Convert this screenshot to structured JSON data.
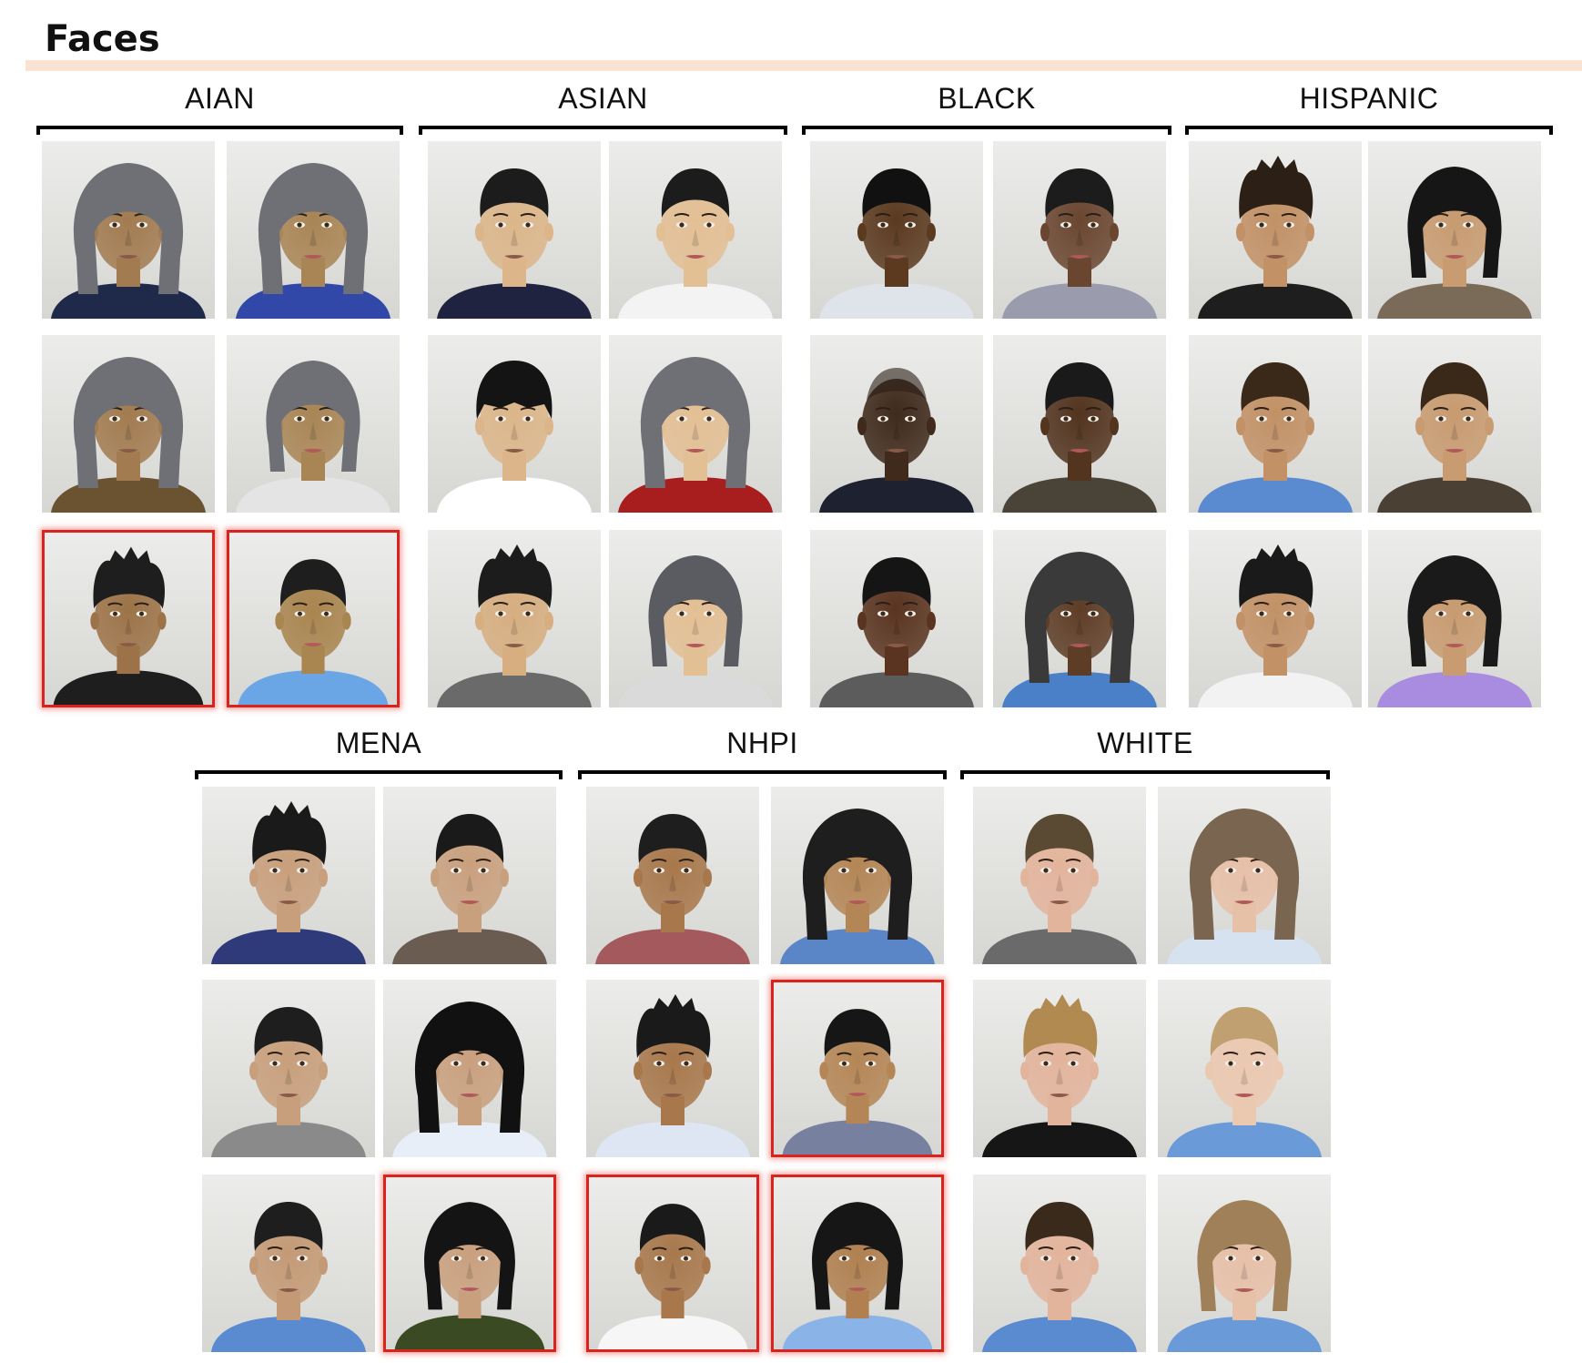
{
  "title": "Faces",
  "groups": [
    {
      "label": "AIAN"
    },
    {
      "label": "ASIAN"
    },
    {
      "label": "BLACK"
    },
    {
      "label": "HISPANIC"
    },
    {
      "label": "MENA"
    },
    {
      "label": "NHPI"
    },
    {
      "label": "WHITE"
    }
  ],
  "colors": {
    "highlight_border": "#d8231f",
    "title_rule": "#fbe3d4"
  },
  "faces": {
    "AIAN": [
      {
        "gender": "male",
        "skin": "#a27b50",
        "hair": "#6e7075",
        "hair_style": "long",
        "shirt": "#1f2a4a",
        "highlighted": false
      },
      {
        "gender": "female",
        "skin": "#a98555",
        "hair": "#6e7075",
        "hair_style": "long",
        "shirt": "#3248a8",
        "highlighted": false
      },
      {
        "gender": "male",
        "skin": "#a27b50",
        "hair": "#6e7075",
        "hair_style": "long",
        "shirt": "#6b5230",
        "highlighted": false
      },
      {
        "gender": "female",
        "skin": "#a98555",
        "hair": "#6e7075",
        "hair_style": "bob",
        "shirt": "#e4e4e4",
        "highlighted": false
      },
      {
        "gender": "male",
        "skin": "#9c7348",
        "hair": "#1e1e1e",
        "hair_style": "spiky",
        "shirt": "#1e1e1e",
        "highlighted": true
      },
      {
        "gender": "female",
        "skin": "#a9854f",
        "hair": "#1e1e1e",
        "hair_style": "slick",
        "shirt": "#6aa6e6",
        "highlighted": true
      }
    ],
    "ASIAN": [
      {
        "gender": "male",
        "skin": "#dcb68a",
        "hair": "#1c1c1c",
        "hair_style": "short",
        "shirt": "#1f2340",
        "highlighted": false
      },
      {
        "gender": "female",
        "skin": "#e3bf94",
        "hair": "#1c1c1c",
        "hair_style": "slick",
        "shirt": "#f3f3f3",
        "highlighted": false
      },
      {
        "gender": "male",
        "skin": "#dcb68a",
        "hair": "#141414",
        "hair_style": "bangs",
        "shirt": "#ffffff",
        "highlighted": false
      },
      {
        "gender": "female",
        "skin": "#e3bf94",
        "hair": "#6e7075",
        "hair_style": "long",
        "shirt": "#a81e1e",
        "highlighted": false
      },
      {
        "gender": "male",
        "skin": "#d6ae80",
        "hair": "#1c1c1c",
        "hair_style": "spiky",
        "shirt": "#6a6a6a",
        "highlighted": false
      },
      {
        "gender": "female",
        "skin": "#e3bf94",
        "hair": "#5a5c62",
        "hair_style": "bob",
        "shirt": "#dadada",
        "highlighted": false
      }
    ],
    "BLACK": [
      {
        "gender": "male",
        "skin": "#5b3a1f",
        "hair": "#111111",
        "hair_style": "short",
        "shirt": "#dfe3ea",
        "highlighted": false
      },
      {
        "gender": "female",
        "skin": "#6a4630",
        "hair": "#1c1c1c",
        "hair_style": "short",
        "shirt": "#9a9cae",
        "highlighted": false
      },
      {
        "gender": "male",
        "skin": "#3f2a1c",
        "hair": "#2a1d14",
        "hair_style": "bald",
        "shirt": "#1e2230",
        "highlighted": false
      },
      {
        "gender": "female",
        "skin": "#52341f",
        "hair": "#1a1a1a",
        "hair_style": "short",
        "shirt": "#4a4438",
        "highlighted": false
      },
      {
        "gender": "male",
        "skin": "#5a3420",
        "hair": "#151515",
        "hair_style": "short",
        "shirt": "#5c5c5c",
        "highlighted": false
      },
      {
        "gender": "female",
        "skin": "#5e3d26",
        "hair": "#3a3a3a",
        "hair_style": "long",
        "shirt": "#4a80c8",
        "highlighted": false
      }
    ],
    "HISPANIC": [
      {
        "gender": "male",
        "skin": "#c29166",
        "hair": "#2b1f16",
        "hair_style": "spiky",
        "shirt": "#1e1e1e",
        "highlighted": false
      },
      {
        "gender": "female",
        "skin": "#c89b70",
        "hair": "#161616",
        "hair_style": "bob",
        "shirt": "#7a6a58",
        "highlighted": false
      },
      {
        "gender": "male",
        "skin": "#c29166",
        "hair": "#3a2818",
        "hair_style": "short",
        "shirt": "#5a8ad0",
        "highlighted": false
      },
      {
        "gender": "female",
        "skin": "#c89b70",
        "hair": "#3a2818",
        "hair_style": "slick",
        "shirt": "#4a4034",
        "highlighted": false
      },
      {
        "gender": "male",
        "skin": "#c29166",
        "hair": "#1a1a1a",
        "hair_style": "spiky",
        "shirt": "#f2f2f2",
        "highlighted": false
      },
      {
        "gender": "female",
        "skin": "#c89b70",
        "hair": "#1a1a1a",
        "hair_style": "bob",
        "shirt": "#a98ce0",
        "highlighted": false
      }
    ],
    "MENA": [
      {
        "gender": "male",
        "skin": "#c89f7c",
        "hair": "#1a1a1a",
        "hair_style": "spiky",
        "shirt": "#2e3a7a",
        "highlighted": false
      },
      {
        "gender": "female",
        "skin": "#c9a07e",
        "hair": "#1a1a1a",
        "hair_style": "slick",
        "shirt": "#6a5c50",
        "highlighted": false
      },
      {
        "gender": "male",
        "skin": "#c89f7c",
        "hair": "#1e1e1e",
        "hair_style": "short",
        "shirt": "#8a8a8a",
        "highlighted": false
      },
      {
        "gender": "female",
        "skin": "#c9a07e",
        "hair": "#111111",
        "hair_style": "long",
        "shirt": "#e8eef8",
        "highlighted": false
      },
      {
        "gender": "male",
        "skin": "#c49a76",
        "hair": "#1e1e1e",
        "hair_style": "short",
        "shirt": "#5a8ad0",
        "highlighted": false
      },
      {
        "gender": "female",
        "skin": "#c9a07e",
        "hair": "#141414",
        "hair_style": "bob",
        "shirt": "#3a4a22",
        "highlighted": true
      }
    ],
    "NHPI": [
      {
        "gender": "male",
        "skin": "#a8784c",
        "hair": "#1e1e1e",
        "hair_style": "short",
        "shirt": "#a45a5c",
        "highlighted": false
      },
      {
        "gender": "female",
        "skin": "#b48656",
        "hair": "#1e1e1e",
        "hair_style": "long",
        "shirt": "#5a86c8",
        "highlighted": false
      },
      {
        "gender": "male",
        "skin": "#a8784c",
        "hair": "#1a1a1a",
        "hair_style": "spiky",
        "shirt": "#dfe6f3",
        "highlighted": false
      },
      {
        "gender": "female",
        "skin": "#b48656",
        "hair": "#161616",
        "hair_style": "short",
        "shirt": "#7880a0",
        "highlighted": true
      },
      {
        "gender": "male",
        "skin": "#a8784c",
        "hair": "#1a1a1a",
        "hair_style": "slick",
        "shirt": "#f6f6f6",
        "highlighted": true
      },
      {
        "gender": "female",
        "skin": "#b08050",
        "hair": "#161616",
        "hair_style": "bob",
        "shirt": "#8ab4e8",
        "highlighted": true
      }
    ],
    "WHITE": [
      {
        "gender": "male",
        "skin": "#e3b49c",
        "hair": "#5a4a34",
        "hair_style": "short",
        "shirt": "#6a6a6a",
        "highlighted": false
      },
      {
        "gender": "female",
        "skin": "#e7c0a8",
        "hair": "#7a6650",
        "hair_style": "long",
        "shirt": "#d7e2f0",
        "highlighted": false
      },
      {
        "gender": "male",
        "skin": "#e3b49c",
        "hair": "#b08a50",
        "hair_style": "spiky",
        "shirt": "#161616",
        "highlighted": false
      },
      {
        "gender": "female",
        "skin": "#ebc8b0",
        "hair": "#c0a070",
        "hair_style": "slick",
        "shirt": "#6a9ad8",
        "highlighted": false
      },
      {
        "gender": "male",
        "skin": "#e3b49c",
        "hair": "#3a2a1c",
        "hair_style": "short",
        "shirt": "#5a8ad0",
        "highlighted": false
      },
      {
        "gender": "female",
        "skin": "#e7c0a8",
        "hair": "#a08058",
        "hair_style": "bob",
        "shirt": "#6a9ad8",
        "highlighted": false
      }
    ]
  }
}
